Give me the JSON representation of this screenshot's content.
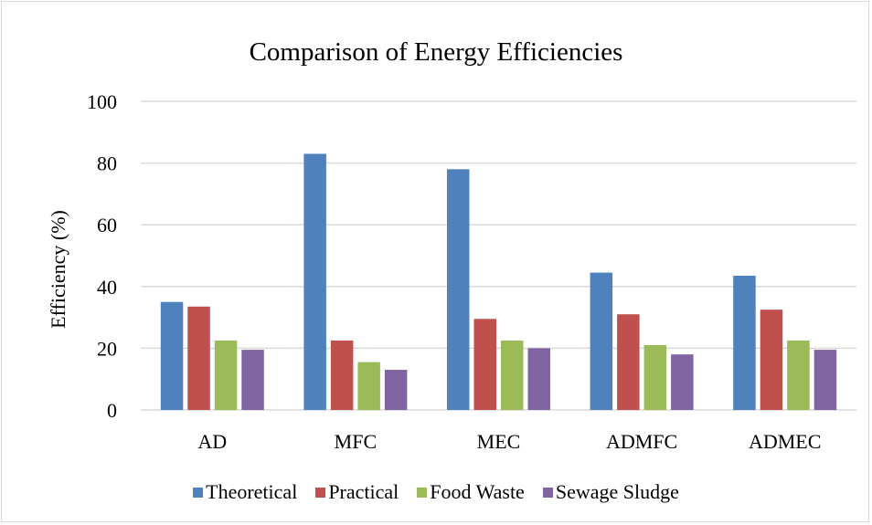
{
  "chart_data": {
    "type": "bar",
    "title": "Comparison of Energy Efficiencies",
    "ylabel": "Efficiency (%)",
    "xlabel": "",
    "ylim": [
      0,
      100
    ],
    "yticks": [
      0,
      20,
      40,
      60,
      80,
      100
    ],
    "grid": true,
    "legend_position": "bottom",
    "categories": [
      "AD",
      "MFC",
      "MEC",
      "ADMFC",
      "ADMEC"
    ],
    "series": [
      {
        "name": "Theoretical",
        "color": "#4f81bd",
        "values": [
          35,
          83,
          78,
          44.5,
          43.5
        ]
      },
      {
        "name": "Practical",
        "color": "#c0504d",
        "values": [
          33.5,
          22.5,
          29.5,
          31,
          32.5
        ]
      },
      {
        "name": "Food Waste",
        "color": "#9bbb59",
        "values": [
          22.5,
          15.5,
          22.5,
          21,
          22.5
        ]
      },
      {
        "name": "Sewage Sludge",
        "color": "#8064a2",
        "values": [
          19.5,
          13,
          20,
          18,
          19.5
        ]
      }
    ]
  }
}
